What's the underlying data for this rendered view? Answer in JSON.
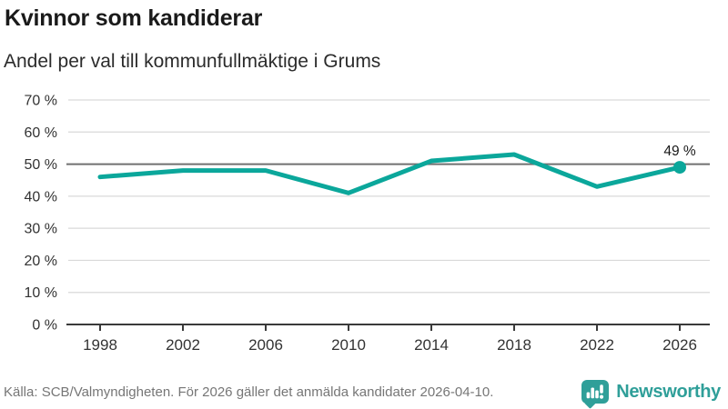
{
  "header": {
    "title": "Kvinnor som kandiderar",
    "subtitle": "Andel per val till kommunfullmäktige i Grums"
  },
  "chart_data": {
    "type": "line",
    "title": "Kvinnor som kandiderar",
    "subtitle": "Andel per val till kommunfullmäktige i Grums",
    "x": [
      "1998",
      "2002",
      "2006",
      "2010",
      "2014",
      "2018",
      "2022",
      "2026"
    ],
    "values": [
      46,
      48,
      48,
      41,
      51,
      53,
      43,
      49
    ],
    "ylim": [
      0,
      70
    ],
    "ytick_step": 10,
    "ytick_suffix": " %",
    "reference_line": 50,
    "end_point_label": "49 %",
    "grid": true,
    "legend": "none",
    "line_color": "#0ba79b"
  },
  "footer": {
    "source": "Källa: SCB/Valmyndigheten. För 2026 gäller det anmälda kandidater 2026-04-10.",
    "brand": "Newsworthy"
  },
  "colors": {
    "accent_teal": "#0ba79b",
    "brand_teal": "#2f9f99",
    "grid_light": "#d9d9d9",
    "reference_gray": "#707070",
    "axis_dark": "#3a3a3a",
    "tick_text": "#333333",
    "text_dark": "#1a1a1a",
    "text_muted": "#767676"
  }
}
